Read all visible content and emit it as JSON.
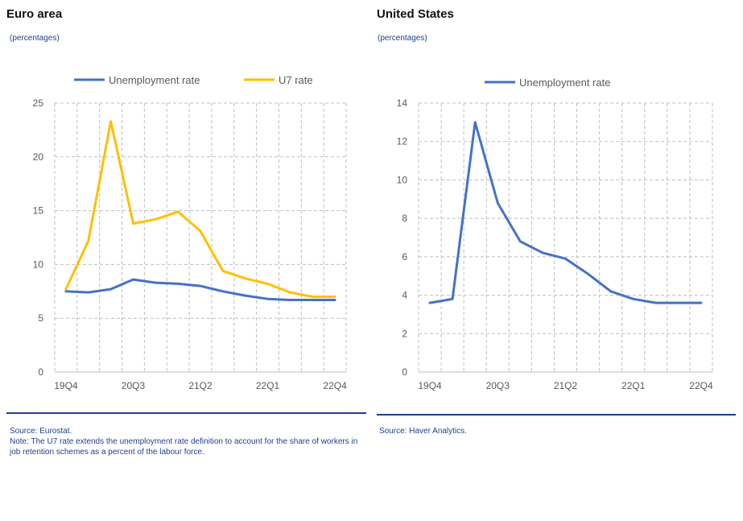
{
  "panels": {
    "left": {
      "title": "Euro area",
      "subtitle": "(percentages)",
      "source": "Source: Eurostat.",
      "note": "Note: The U7 rate extends the unemployment rate definition to account for the share of workers in job retention schemes as a percent of the labour force."
    },
    "right": {
      "title": "United States",
      "subtitle": "(percentages)",
      "source": "Source: Haver Analytics."
    }
  },
  "colors": {
    "blue": "#4472C4",
    "gold": "#FFC000",
    "grid": "#BFBFBF",
    "axis_text": "#595959",
    "rule": "#1F3F8F"
  },
  "chart_data": [
    {
      "type": "line",
      "title": "Euro area",
      "x": [
        "19Q4",
        "20Q1",
        "20Q2",
        "20Q3",
        "20Q4",
        "21Q1",
        "21Q2",
        "21Q3",
        "21Q4",
        "22Q1",
        "22Q2",
        "22Q3",
        "22Q4"
      ],
      "xticks": [
        "19Q4",
        "20Q3",
        "21Q2",
        "22Q1",
        "22Q4"
      ],
      "yticks": [
        0,
        5,
        10,
        15,
        20,
        25
      ],
      "ylim": [
        0,
        25
      ],
      "grid": true,
      "legend_position": "top",
      "series": [
        {
          "name": "Unemployment rate",
          "color": "#4472C4",
          "values": [
            7.5,
            7.4,
            7.7,
            8.6,
            8.3,
            8.2,
            8.0,
            7.5,
            7.1,
            6.8,
            6.7,
            6.7,
            6.7
          ]
        },
        {
          "name": "U7 rate",
          "color": "#FFC000",
          "values": [
            7.7,
            12.2,
            23.3,
            13.8,
            14.2,
            14.9,
            13.1,
            9.4,
            8.7,
            8.2,
            7.4,
            7.0,
            7.0
          ]
        }
      ]
    },
    {
      "type": "line",
      "title": "United States",
      "x": [
        "19Q4",
        "20Q1",
        "20Q2",
        "20Q3",
        "20Q4",
        "21Q1",
        "21Q2",
        "21Q3",
        "21Q4",
        "22Q1",
        "22Q2",
        "22Q3",
        "22Q4"
      ],
      "xticks": [
        "19Q4",
        "20Q3",
        "21Q2",
        "22Q1",
        "22Q4"
      ],
      "yticks": [
        0,
        2,
        4,
        6,
        8,
        10,
        12,
        14
      ],
      "ylim": [
        0,
        14
      ],
      "grid": true,
      "legend_position": "top",
      "series": [
        {
          "name": "Unemployment rate",
          "color": "#4472C4",
          "values": [
            3.6,
            3.8,
            13.0,
            8.8,
            6.8,
            6.2,
            5.9,
            5.1,
            4.2,
            3.8,
            3.6,
            3.6,
            3.6
          ]
        }
      ]
    }
  ]
}
